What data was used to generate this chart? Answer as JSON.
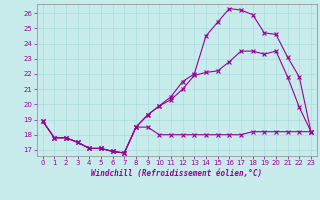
{
  "xlabel": "Windchill (Refroidissement éolien,°C)",
  "background_color": "#c8ecec",
  "grid_color": "#aadddd",
  "line_color": "#990099",
  "xlim": [
    -0.5,
    23.5
  ],
  "ylim": [
    16.6,
    26.6
  ],
  "yticks": [
    17,
    18,
    19,
    20,
    21,
    22,
    23,
    24,
    25,
    26
  ],
  "xticks": [
    0,
    1,
    2,
    3,
    4,
    5,
    6,
    7,
    8,
    9,
    10,
    11,
    12,
    13,
    14,
    15,
    16,
    17,
    18,
    19,
    20,
    21,
    22,
    23
  ],
  "line1_x": [
    0,
    1,
    2,
    3,
    4,
    5,
    6,
    7,
    8,
    9,
    10,
    11,
    12,
    13,
    14,
    15,
    16,
    17,
    18,
    19,
    20,
    21,
    22,
    23
  ],
  "line1_y": [
    18.9,
    17.8,
    17.8,
    17.5,
    17.1,
    17.1,
    16.9,
    16.8,
    18.5,
    18.5,
    18.0,
    18.0,
    18.0,
    18.0,
    18.0,
    18.0,
    18.0,
    18.0,
    18.2,
    18.2,
    18.2,
    18.2,
    18.2,
    18.2
  ],
  "line2_x": [
    0,
    1,
    2,
    3,
    4,
    5,
    6,
    7,
    8,
    9,
    10,
    11,
    12,
    13,
    14,
    15,
    16,
    17,
    18,
    19,
    20,
    21,
    22,
    23
  ],
  "line2_y": [
    18.9,
    17.8,
    17.8,
    17.5,
    17.1,
    17.1,
    16.9,
    16.8,
    18.5,
    19.3,
    19.9,
    20.3,
    21.0,
    21.9,
    22.1,
    22.2,
    22.8,
    23.5,
    23.5,
    23.3,
    23.5,
    21.8,
    19.8,
    18.2
  ],
  "line3_x": [
    0,
    1,
    2,
    3,
    4,
    5,
    6,
    7,
    8,
    9,
    10,
    11,
    12,
    13,
    14,
    15,
    16,
    17,
    18,
    19,
    20,
    21,
    22,
    23
  ],
  "line3_y": [
    18.9,
    17.8,
    17.8,
    17.5,
    17.1,
    17.1,
    16.9,
    16.8,
    18.5,
    19.3,
    19.9,
    20.5,
    21.5,
    22.0,
    24.5,
    25.4,
    26.3,
    26.2,
    25.9,
    24.7,
    24.6,
    23.1,
    21.8,
    18.2
  ]
}
